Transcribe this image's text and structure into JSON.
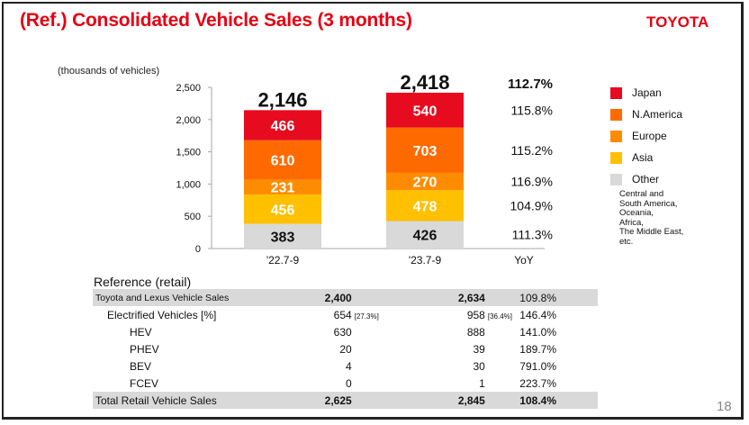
{
  "header": {
    "title": "(Ref.) Consolidated Vehicle Sales (3 months)",
    "brand": "TOYOTA"
  },
  "chart_data": {
    "type": "bar",
    "stacked": true,
    "title": "(Ref.) Consolidated Vehicle Sales (3 months)",
    "ylabel": "(thousands of vehicles)",
    "xlabel": "",
    "ylim": [
      0,
      2500
    ],
    "yticks": [
      "0",
      "500",
      "1,000",
      "1,500",
      "2,000",
      "2,500"
    ],
    "ytick_values": [
      0,
      500,
      1000,
      1500,
      2000,
      2500
    ],
    "categories": [
      "'22.7-9",
      "'23.7-9"
    ],
    "yoy_label": "YoY",
    "totals": [
      2146,
      2418
    ],
    "total_labels": [
      "2,146",
      "2,418"
    ],
    "total_yoy": "112.7%",
    "series": [
      {
        "name": "Other",
        "color": "#d9d9d9",
        "label_color": "#111111",
        "values": [
          383,
          426
        ],
        "yoy": "111.3%"
      },
      {
        "name": "Asia",
        "color": "#ffc000",
        "label_color": "#ffffff",
        "values": [
          456,
          478
        ],
        "yoy": "104.9%"
      },
      {
        "name": "Europe",
        "color": "#ff8c00",
        "label_color": "#ffffff",
        "values": [
          231,
          270
        ],
        "yoy": "116.9%"
      },
      {
        "name": "N.America",
        "color": "#ff6a00",
        "label_color": "#ffffff",
        "values": [
          610,
          703
        ],
        "yoy": "115.2%"
      },
      {
        "name": "Japan",
        "color": "#e60b1f",
        "label_color": "#ffffff",
        "values": [
          466,
          540
        ],
        "yoy": "115.8%"
      }
    ],
    "legend": [
      "Japan",
      "N.America",
      "Europe",
      "Asia",
      "Other"
    ],
    "legend_placement": "right",
    "legend_note": "Central and\nSouth America,\nOceania,\nAfrica,\nThe Middle East,\n etc.",
    "grid": false
  },
  "legend": {
    "items": [
      {
        "label": "Japan",
        "color": "#e60b1f"
      },
      {
        "label": "N.America",
        "color": "#ff6a00"
      },
      {
        "label": "Europe",
        "color": "#ff8c00"
      },
      {
        "label": "Asia",
        "color": "#ffc000"
      },
      {
        "label": "Other",
        "color": "#d9d9d9"
      }
    ],
    "note": "Central and\nSouth America,\nOceania,\nAfrica,\nThe Middle East,\n etc."
  },
  "reference": {
    "title": "Reference (retail)",
    "rows": [
      {
        "label": "Toyota and Lexus Vehicle Sales",
        "v1": "2,400",
        "p1": "",
        "v2": "2,634",
        "p2": "",
        "yoy": "109.8%"
      },
      {
        "label": "Electrified Vehicles [%]",
        "v1": "654",
        "p1": "[27.3%]",
        "v2": "958",
        "p2": "[36.4%]",
        "yoy": "146.4%"
      },
      {
        "label": "HEV",
        "v1": "630",
        "p1": "",
        "v2": "888",
        "p2": "",
        "yoy": "141.0%"
      },
      {
        "label": "PHEV",
        "v1": "20",
        "p1": "",
        "v2": "39",
        "p2": "",
        "yoy": "189.7%"
      },
      {
        "label": "BEV",
        "v1": "4",
        "p1": "",
        "v2": "30",
        "p2": "",
        "yoy": "791.0%"
      },
      {
        "label": "FCEV",
        "v1": "0",
        "p1": "",
        "v2": "1",
        "p2": "",
        "yoy": "223.7%"
      },
      {
        "label": "Total Retail Vehicle Sales",
        "v1": "2,625",
        "p1": "",
        "v2": "2,845",
        "p2": "",
        "yoy": "108.4%"
      }
    ]
  },
  "footer": {
    "page_number": "18"
  }
}
